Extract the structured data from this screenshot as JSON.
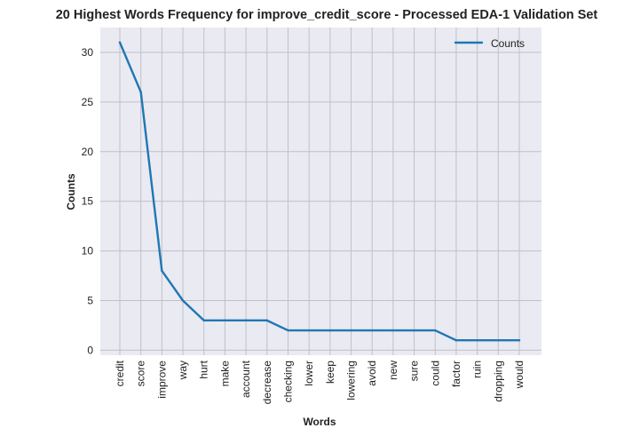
{
  "chart_data": {
    "type": "line",
    "title": "20 Highest Words Frequency for improve_credit_score - Processed EDA-1 Validation Set",
    "xlabel": "Words",
    "ylabel": "Counts",
    "categories": [
      "credit",
      "score",
      "improve",
      "way",
      "hurt",
      "make",
      "account",
      "decrease",
      "checking",
      "lower",
      "keep",
      "lowering",
      "avoid",
      "new",
      "sure",
      "could",
      "factor",
      "ruin",
      "dropping",
      "would"
    ],
    "series": [
      {
        "name": "Counts",
        "values": [
          31,
          26,
          8,
          5,
          3,
          3,
          3,
          3,
          2,
          2,
          2,
          2,
          2,
          2,
          2,
          2,
          1,
          1,
          1,
          1
        ]
      }
    ],
    "yticks": [
      0,
      5,
      10,
      15,
      20,
      25,
      30
    ],
    "ylim": [
      -0.5,
      32.5
    ],
    "grid": true,
    "legend_position": "top-right",
    "colors": {
      "line": "#1f77b4",
      "plot_background": "#eaeaf2",
      "grid": "#c0c0c8"
    }
  }
}
